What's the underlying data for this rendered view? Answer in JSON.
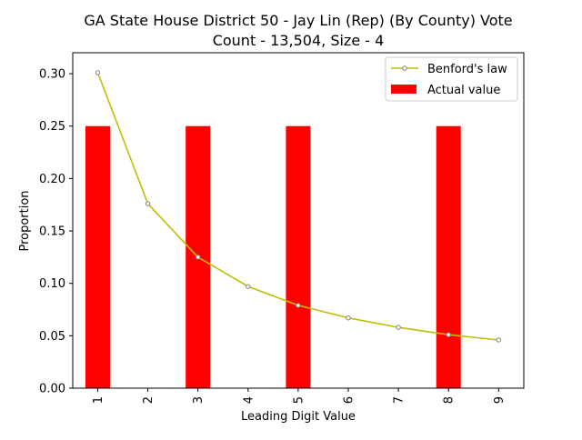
{
  "chart_data": {
    "type": "bar",
    "title_line1": "GA State House District 50 - Jay Lin (Rep) (By County) Vote",
    "title_line2": "Count - 13,504, Size - 4",
    "xlabel": "Leading Digit Value",
    "ylabel": "Proportion",
    "categories": [
      "1",
      "2",
      "3",
      "4",
      "5",
      "6",
      "7",
      "8",
      "9"
    ],
    "ylim": [
      0,
      0.32
    ],
    "yticks": [
      "0.00",
      "0.05",
      "0.10",
      "0.15",
      "0.20",
      "0.25",
      "0.30"
    ],
    "ytick_values": [
      0,
      0.05,
      0.1,
      0.15,
      0.2,
      0.25,
      0.3
    ],
    "grid": false,
    "legend_position": "top-right",
    "series": [
      {
        "name": "Actual value",
        "kind": "bar",
        "color": "#ff0000",
        "values": [
          0.25,
          0,
          0.25,
          0,
          0.25,
          0,
          0,
          0.25,
          0
        ]
      },
      {
        "name": "Benford's law",
        "kind": "line",
        "color": "#bfbf00",
        "marker_color": "#808080",
        "values": [
          0.301,
          0.176,
          0.125,
          0.097,
          0.079,
          0.067,
          0.058,
          0.051,
          0.046
        ]
      }
    ]
  }
}
